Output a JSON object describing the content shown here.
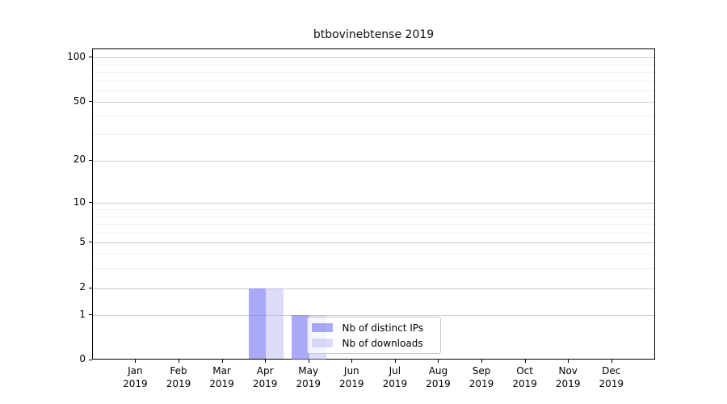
{
  "chart_data": {
    "type": "bar",
    "title": "btbovinebtense 2019",
    "categories": [
      "Jan 2019",
      "Feb 2019",
      "Mar 2019",
      "Apr 2019",
      "May 2019",
      "Jun 2019",
      "Jul 2019",
      "Aug 2019",
      "Sep 2019",
      "Oct 2019",
      "Nov 2019",
      "Dec 2019"
    ],
    "series": [
      {
        "name": "Nb of distinct IPs",
        "color": "rgba(112,112,244,0.60)",
        "values": [
          0,
          0,
          0,
          2,
          1,
          0,
          0,
          0,
          0,
          0,
          0,
          0
        ]
      },
      {
        "name": "Nb of downloads",
        "color": "rgba(170,170,243,0.41)",
        "values": [
          0,
          0,
          0,
          2,
          1,
          0,
          0,
          0,
          0,
          0,
          0,
          0
        ]
      }
    ],
    "xlabel": "",
    "ylabel": "",
    "yscale": "symlog-like",
    "yticks": [
      0,
      1,
      2,
      5,
      10,
      20,
      50,
      100
    ],
    "y_minor_ticks": [
      3,
      4,
      6,
      7,
      8,
      9,
      30,
      40,
      60,
      70,
      80,
      90
    ],
    "ylim": [
      0,
      110
    ],
    "grid": "horizontal major and minor, light gray",
    "legend": {
      "position": "inside lower middle",
      "entries": [
        "Nb of distinct IPs",
        "Nb of downloads"
      ]
    }
  },
  "colors": {
    "background": "#ffffff",
    "spine": "#000000",
    "grid_major": "#cfcfcf",
    "grid_minor": "#efefef",
    "legend_border": "#cccccc",
    "bar_distinct_ips_rendered": "#aaaaf8",
    "bar_downloads_rendered": "#dcdcf8",
    "text": "#111111"
  }
}
